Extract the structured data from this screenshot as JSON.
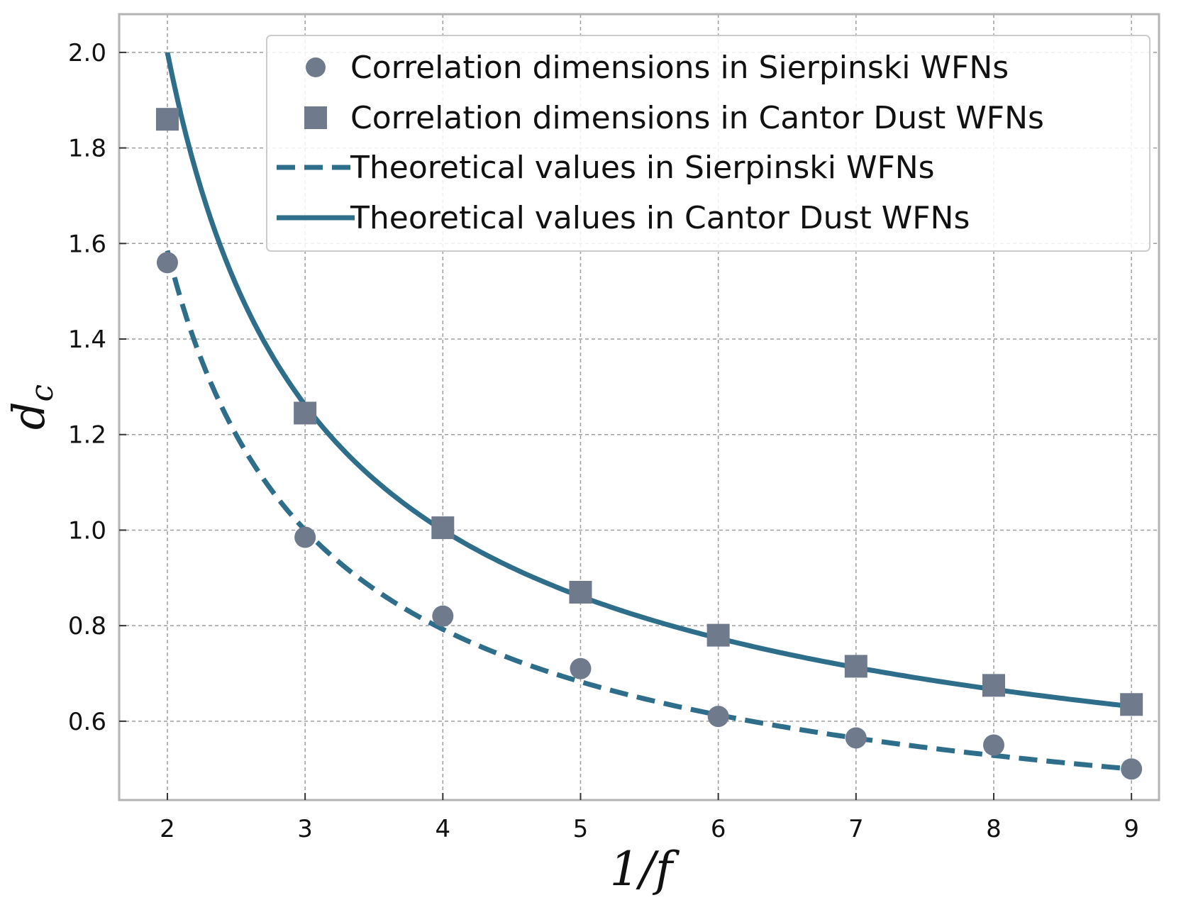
{
  "chart_data": {
    "type": "line",
    "title": "",
    "xlabel": "1/f",
    "ylabel_main": "d",
    "ylabel_sub": "c",
    "xlim": [
      1.65,
      9.2
    ],
    "ylim": [
      0.435,
      2.08
    ],
    "xticks": [
      2,
      3,
      4,
      5,
      6,
      7,
      8,
      9
    ],
    "yticks": [
      0.6,
      0.8,
      1.0,
      1.2,
      1.4,
      1.6,
      1.8,
      2.0
    ],
    "grid": true,
    "legend_position": "top-right",
    "colors": {
      "markers": "#6f7b8c",
      "lines": "#2e6e8a",
      "grid": "#9e9e9e",
      "axes": "#b3b3b3"
    },
    "series": [
      {
        "name": "Correlation dimensions in Sierpinski WFNs",
        "kind": "scatter",
        "marker": "circle",
        "x": [
          2,
          3,
          4,
          5,
          6,
          7,
          8,
          9
        ],
        "y": [
          1.56,
          0.985,
          0.82,
          0.71,
          0.61,
          0.565,
          0.55,
          0.5
        ]
      },
      {
        "name": "Correlation dimensions in Cantor Dust WFNs",
        "kind": "scatter",
        "marker": "square",
        "x": [
          2,
          3,
          4,
          5,
          6,
          7,
          8,
          9
        ],
        "y": [
          1.86,
          1.245,
          1.005,
          0.87,
          0.78,
          0.715,
          0.675,
          0.635
        ]
      },
      {
        "name": "Theoretical values in Sierpinski WFNs",
        "kind": "line",
        "style": "dashed",
        "formula": "ln(3)/ln(x)",
        "x_range": [
          2,
          9
        ]
      },
      {
        "name": "Theoretical values in Cantor Dust WFNs",
        "kind": "line",
        "style": "solid",
        "formula": "ln(4)/ln(x)",
        "x_range": [
          2,
          9
        ]
      }
    ]
  }
}
